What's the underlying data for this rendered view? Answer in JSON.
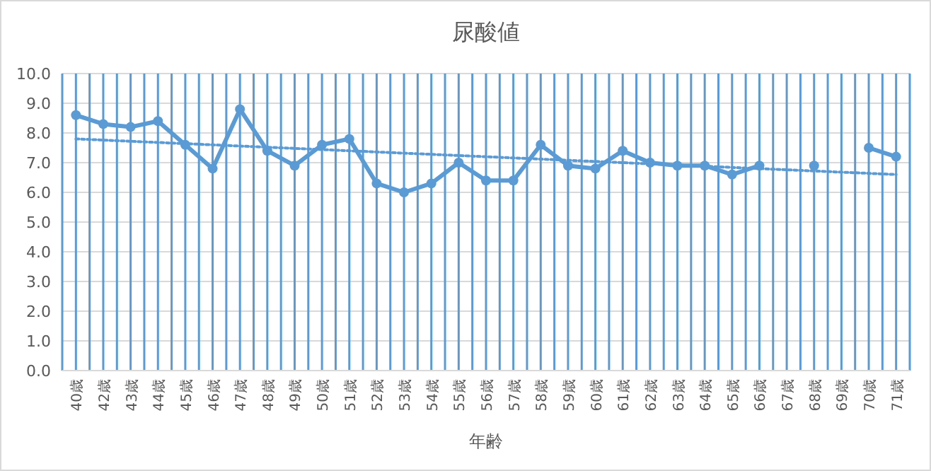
{
  "chart_data": {
    "type": "line",
    "title": "尿酸値",
    "xlabel": "年齢",
    "categories": [
      "40歳",
      "42歳",
      "43歳",
      "44歳",
      "45歳",
      "46歳",
      "47歳",
      "48歳",
      "49歳",
      "50歳",
      "51歳",
      "52歳",
      "53歳",
      "54歳",
      "55歳",
      "56歳",
      "57歳",
      "58歳",
      "59歳",
      "60歳",
      "61歳",
      "62歳",
      "63歳",
      "64歳",
      "65歳",
      "66歳",
      "67歳",
      "68歳",
      "69歳",
      "70歳",
      "71歳"
    ],
    "series": [
      {
        "color": "#5b9bd5",
        "line_style": "solid",
        "marker": "circle",
        "values": [
          8.6,
          8.3,
          8.2,
          8.4,
          7.6,
          6.8,
          8.8,
          7.4,
          6.9,
          7.6,
          7.8,
          6.3,
          6.0,
          6.3,
          7.0,
          6.4,
          6.4,
          7.6,
          6.9,
          6.8,
          7.4,
          7.0,
          6.9,
          6.9,
          6.6,
          6.9,
          null,
          6.9,
          null,
          7.5,
          7.2
        ]
      },
      {
        "type": "line",
        "color": "#5b9bd5",
        "line_style": "dotted",
        "marker": "none",
        "x": [
          "40歳",
          "71歳"
        ],
        "values": [
          7.8,
          6.6
        ]
      }
    ],
    "ylim": [
      0,
      10
    ],
    "yticks": [
      {
        "value": 0,
        "label": "0.0"
      },
      {
        "value": 1,
        "label": "1.0"
      },
      {
        "value": 2,
        "label": "2.0"
      },
      {
        "value": 3,
        "label": "3.0"
      },
      {
        "value": 4,
        "label": "4.0"
      },
      {
        "value": 5,
        "label": "5.0"
      },
      {
        "value": 6,
        "label": "6.0"
      },
      {
        "value": 7,
        "label": "7.0"
      },
      {
        "value": 8,
        "label": "8.0"
      },
      {
        "value": 9,
        "label": "9.0"
      },
      {
        "value": 10,
        "label": "10.0"
      }
    ],
    "grid": true
  }
}
